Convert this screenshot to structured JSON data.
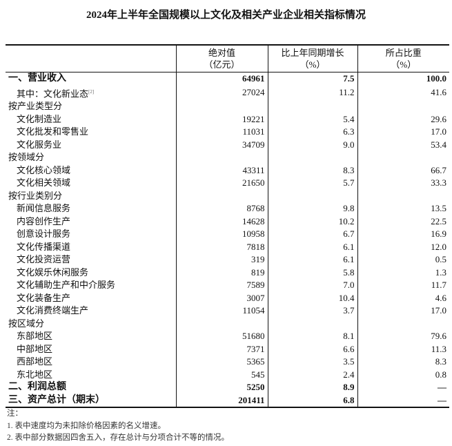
{
  "title": "2024年上半年全国规模以上文化及相关产业企业相关指标情况",
  "headers": [
    {
      "line1": "绝对值",
      "line2": "（亿元）"
    },
    {
      "line1": "比上年同期增长",
      "line2": "（%）"
    },
    {
      "line1": "所占比重",
      "line2": "（%）"
    }
  ],
  "rows": [
    {
      "label": "一、营业收入",
      "value": "64961",
      "growth": "7.5",
      "share": "100.0",
      "bold": true,
      "indent": false
    },
    {
      "label": "其中：文化新业态",
      "sup": "[2]",
      "value": "27024",
      "growth": "11.2",
      "share": "41.6",
      "indent": true
    },
    {
      "label": "按产业类型分",
      "value": "",
      "growth": "",
      "share": "",
      "indent": false
    },
    {
      "label": "文化制造业",
      "value": "19221",
      "growth": "5.4",
      "share": "29.6",
      "indent": true
    },
    {
      "label": "文化批发和零售业",
      "value": "11031",
      "growth": "6.3",
      "share": "17.0",
      "indent": true
    },
    {
      "label": "文化服务业",
      "value": "34709",
      "growth": "9.0",
      "share": "53.4",
      "indent": true
    },
    {
      "label": "按领域分",
      "value": "",
      "growth": "",
      "share": "",
      "indent": false
    },
    {
      "label": "文化核心领域",
      "value": "43311",
      "growth": "8.3",
      "share": "66.7",
      "indent": true
    },
    {
      "label": "文化相关领域",
      "value": "21650",
      "growth": "5.7",
      "share": "33.3",
      "indent": true
    },
    {
      "label": "按行业类别分",
      "value": "",
      "growth": "",
      "share": "",
      "indent": false
    },
    {
      "label": "新闻信息服务",
      "value": "8768",
      "growth": "9.8",
      "share": "13.5",
      "indent": true
    },
    {
      "label": "内容创作生产",
      "value": "14628",
      "growth": "10.2",
      "share": "22.5",
      "indent": true
    },
    {
      "label": "创意设计服务",
      "value": "10958",
      "growth": "6.7",
      "share": "16.9",
      "indent": true
    },
    {
      "label": "文化传播渠道",
      "value": "7818",
      "growth": "6.1",
      "share": "12.0",
      "indent": true
    },
    {
      "label": "文化投资运营",
      "value": "319",
      "growth": "6.1",
      "share": "0.5",
      "indent": true
    },
    {
      "label": "文化娱乐休闲服务",
      "value": "819",
      "growth": "5.8",
      "share": "1.3",
      "indent": true
    },
    {
      "label": "文化辅助生产和中介服务",
      "value": "7589",
      "growth": "7.0",
      "share": "11.7",
      "indent": true
    },
    {
      "label": "文化装备生产",
      "value": "3007",
      "growth": "10.4",
      "share": "4.6",
      "indent": true
    },
    {
      "label": "文化消费终端生产",
      "value": "11054",
      "growth": "3.7",
      "share": "17.0",
      "indent": true
    },
    {
      "label": "按区域分",
      "value": "",
      "growth": "",
      "share": "",
      "indent": false
    },
    {
      "label": "东部地区",
      "value": "51680",
      "growth": "8.1",
      "share": "79.6",
      "indent": true
    },
    {
      "label": "中部地区",
      "value": "7371",
      "growth": "6.6",
      "share": "11.3",
      "indent": true
    },
    {
      "label": "西部地区",
      "value": "5365",
      "growth": "3.5",
      "share": "8.3",
      "indent": true
    },
    {
      "label": "东北地区",
      "value": "545",
      "growth": "2.4",
      "share": "0.8",
      "indent": true
    },
    {
      "label": "二、利润总额",
      "value": "5250",
      "growth": "8.9",
      "share": "—",
      "bold": true,
      "indent": false
    },
    {
      "label": "三、资产总计（期末）",
      "value": "201411",
      "growth": "6.8",
      "share": "—",
      "bold": true,
      "indent": false
    }
  ],
  "notes": [
    "注：",
    "1. 表中速度均为未扣除价格因素的名义增速。",
    "2. 表中部分数据因四舍五入，存在总计与分项合计不等的情况。"
  ]
}
